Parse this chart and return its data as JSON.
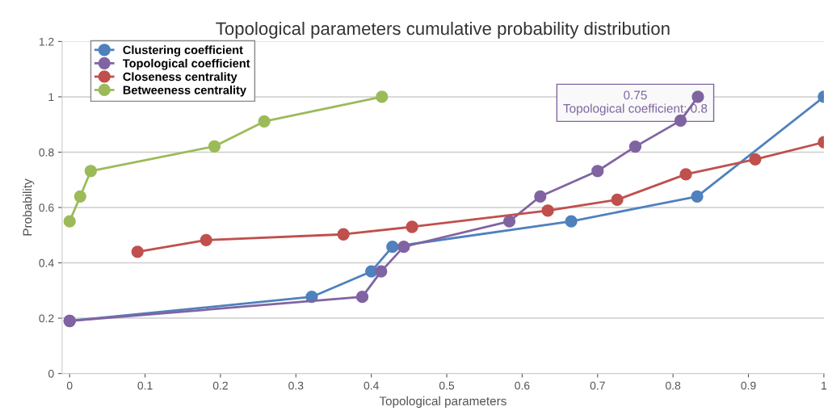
{
  "chart_data": {
    "type": "line",
    "title": "Topological parameters cumulative probability distribution",
    "xlabel": "Topological parameters",
    "ylabel": "Probability",
    "series": [
      {
        "name": "Clustering coefficient",
        "color": "#4f81bd",
        "x": [
          0,
          0.321,
          0.4,
          0.428,
          0.665,
          0.832,
          1
        ],
        "values": [
          0.19,
          0.277,
          0.369,
          0.458,
          0.55,
          0.64,
          1.0
        ]
      },
      {
        "name": "Topological coefficient",
        "color": "#8064a2",
        "x": [
          0,
          0.388,
          0.413,
          0.443,
          0.583,
          0.624,
          0.7,
          0.75,
          0.81,
          0.833
        ],
        "values": [
          0.19,
          0.277,
          0.369,
          0.458,
          0.55,
          0.64,
          0.732,
          0.82,
          0.914,
          1.0
        ]
      },
      {
        "name": "Closeness centrality",
        "color": "#c0504d",
        "x": [
          0.09,
          0.181,
          0.363,
          0.454,
          0.634,
          0.726,
          0.817,
          0.909,
          1
        ],
        "values": [
          0.44,
          0.482,
          0.503,
          0.53,
          0.589,
          0.628,
          0.72,
          0.774,
          0.836
        ]
      },
      {
        "name": "Betweeness centrality",
        "color": "#9bbb59",
        "x": [
          0,
          0.014,
          0.028,
          0.192,
          0.258,
          0.414
        ],
        "values": [
          0.55,
          0.64,
          0.732,
          0.821,
          0.911,
          1.0
        ]
      }
    ],
    "annotations": [
      {
        "text": "0.75\nTopological coefficient: 0.8",
        "x": 0.75,
        "y": 0.82
      }
    ],
    "xlim": [
      -0.01,
      1.0
    ],
    "xticks": [
      0,
      0.1,
      0.2,
      0.3,
      0.4,
      0.5,
      0.6,
      0.7,
      0.8,
      0.9,
      1
    ],
    "ylim": [
      0,
      1.2
    ],
    "yticks": [
      0,
      0.2,
      0.4,
      0.6,
      0.8,
      1,
      1.2
    ],
    "grid": "y",
    "legend": "top left",
    "marker": "circle"
  }
}
